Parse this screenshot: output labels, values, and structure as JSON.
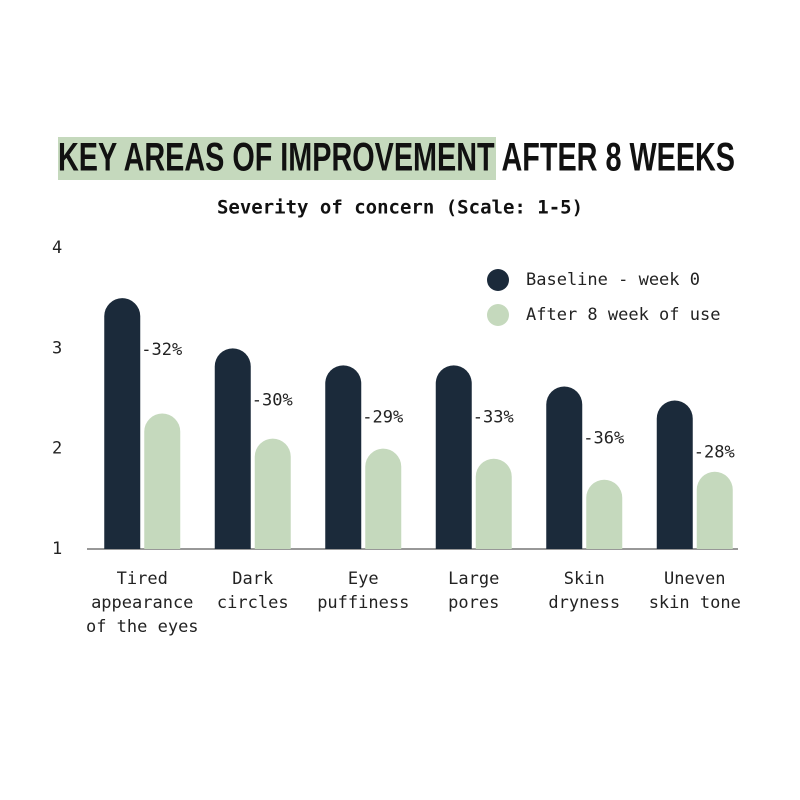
{
  "chart_data": {
    "type": "bar",
    "title": "KEY AREAS OF IMPROVEMENT AFTER 8 WEEKS",
    "subtitle": "Severity of concern (Scale: 1-5)",
    "categories": [
      "Tired\nappearance\nof the eyes",
      "Dark\ncircles",
      "Eye\npuffiness",
      "Large\npores",
      "Skin\ndryness",
      "Uneven\nskin tone"
    ],
    "series": [
      {
        "name": "Baseline - week 0",
        "color": "#1b2a3a",
        "values": [
          3.5,
          3.0,
          2.83,
          2.83,
          2.62,
          2.48
        ]
      },
      {
        "name": "After 8 week of use",
        "color": "#c5d9bd",
        "values": [
          2.35,
          2.1,
          2.0,
          1.9,
          1.69,
          1.77
        ]
      }
    ],
    "change_labels": [
      "-32%",
      "-30%",
      "-29%",
      "-33%",
      "-36%",
      "-28%"
    ],
    "ylim": [
      1,
      4
    ],
    "yticks": [
      1,
      2,
      3,
      4
    ],
    "grid": false,
    "legend": "top-right"
  }
}
